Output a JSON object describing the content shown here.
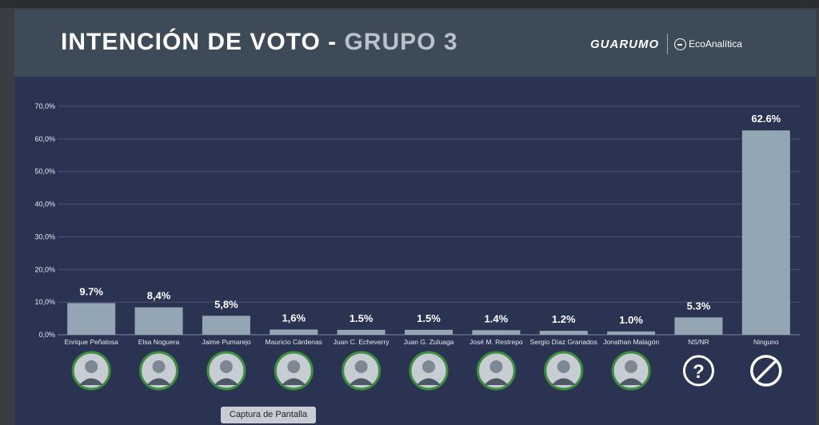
{
  "header": {
    "title_main": "INTENCIÓN DE VOTO - ",
    "title_accent": "GRUPO 3",
    "logo_left": "GUARUMO",
    "logo_right": "EcoAnalítica"
  },
  "tooltip": "Captura de Pantalla",
  "colors": {
    "bar": "#94a5b4",
    "grid": "#4a5472",
    "background": "#2b3352",
    "photo_ring": "#3c8f3c"
  },
  "chart_data": {
    "type": "bar",
    "title": "INTENCIÓN DE VOTO - GRUPO 3",
    "categories": [
      "Enrique Peñalosa",
      "Elsa Noguera",
      "Jaime Pumarejo",
      "Mauricio Cárdenas",
      "Juan C. Echeverry",
      "Juan G. Zuluaga",
      "José M. Restrepo",
      "Sergio Díaz Granados",
      "Jonathan Malagón",
      "NS/NR",
      "Ninguno"
    ],
    "values": [
      9.7,
      8.4,
      5.8,
      1.6,
      1.5,
      1.5,
      1.4,
      1.2,
      1.0,
      5.3,
      62.6
    ],
    "value_labels": [
      "9.7%",
      "8,4%",
      "5,8%",
      "1,6%",
      "1.5%",
      "1.5%",
      "1.4%",
      "1.2%",
      "1.0%",
      "5.3%",
      "62.6%"
    ],
    "yticks": [
      "0,0%",
      "10,0%",
      "20,0%",
      "30,0%",
      "40,0%",
      "50,0%",
      "60,0%",
      "70,0%"
    ],
    "ylim": [
      0,
      70
    ],
    "grid": true,
    "xlabel": "",
    "ylabel": "",
    "icons": [
      "candidate-photo",
      "candidate-photo",
      "candidate-photo",
      "candidate-photo",
      "candidate-photo",
      "candidate-photo",
      "candidate-photo",
      "candidate-photo",
      "candidate-photo",
      "question-icon",
      "no-symbol-icon"
    ]
  }
}
